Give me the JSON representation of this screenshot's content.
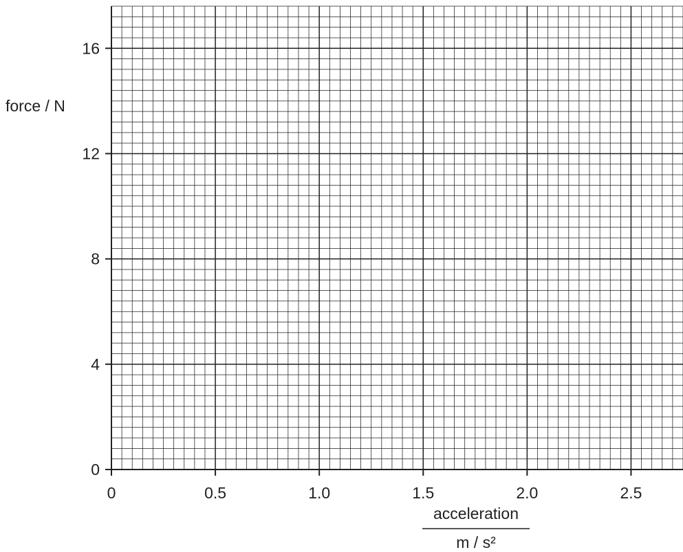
{
  "chart_data": {
    "type": "scatter",
    "title": "",
    "xlabel": "acceleration",
    "xunit": "m / s²",
    "ylabel": "force / N",
    "x": [],
    "y": [],
    "series": [],
    "xlim": [
      0,
      2.75
    ],
    "ylim": [
      0,
      17.6
    ],
    "xticks": [
      0,
      0.5,
      1.0,
      1.5,
      2.0,
      2.5
    ],
    "xtick_labels": [
      "0",
      "0.5",
      "1.0",
      "1.5",
      "2.0",
      "2.5"
    ],
    "yticks": [
      0,
      4,
      8,
      12,
      16
    ],
    "ytick_labels": [
      "0",
      "4",
      "8",
      "12",
      "16"
    ],
    "grid": true,
    "grid_minor_x_step": 0.05,
    "grid_minor_y_step": 0.4,
    "grid_major_x_step": 0.5,
    "grid_major_y_step": 4,
    "colors": {
      "ink": "#231f20",
      "background": "#ffffff"
    }
  }
}
